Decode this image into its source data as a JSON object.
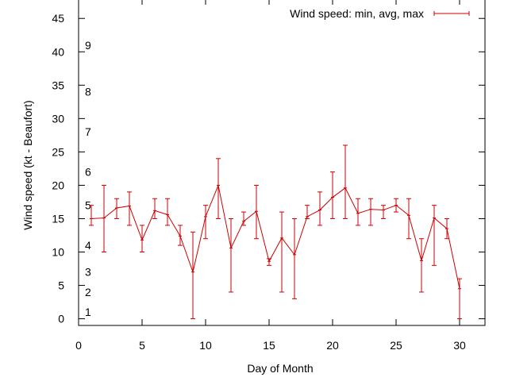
{
  "chart_data": {
    "type": "line",
    "xlabel": "Day of Month",
    "ylabel": "Wind speed (kt - Beaufort)",
    "xlim": [
      0,
      32
    ],
    "ylim": [
      -1,
      48
    ],
    "x_ticks": [
      0,
      5,
      10,
      15,
      20,
      25,
      30
    ],
    "y_ticks": [
      0,
      5,
      10,
      15,
      20,
      25,
      30,
      35,
      40,
      45
    ],
    "grid": false,
    "legend_position": "top-right",
    "series_color": "#cc0000",
    "beaufort_labels": [
      {
        "label": "1",
        "y": 1
      },
      {
        "label": "2",
        "y": 4
      },
      {
        "label": "3",
        "y": 7
      },
      {
        "label": "4",
        "y": 11
      },
      {
        "label": "5",
        "y": 17
      },
      {
        "label": "6",
        "y": 22
      },
      {
        "label": "7",
        "y": 28
      },
      {
        "label": "8",
        "y": 34
      },
      {
        "label": "9",
        "y": 41
      }
    ],
    "series": [
      {
        "name": "Wind speed: min, avg, max",
        "x": [
          1,
          2,
          3,
          4,
          5,
          6,
          7,
          8,
          9,
          10,
          11,
          12,
          13,
          14,
          15,
          16,
          17,
          18,
          19,
          20,
          21,
          22,
          23,
          24,
          25,
          26,
          27,
          28,
          29,
          30
        ],
        "min": [
          14,
          10,
          15,
          14,
          10,
          15,
          14,
          11,
          0,
          12,
          15,
          4,
          14,
          12,
          8,
          4,
          3,
          15,
          14,
          15,
          15,
          14,
          14,
          15,
          16,
          12,
          4,
          8,
          12,
          0
        ],
        "avg": [
          15,
          15.1,
          16.6,
          16.9,
          11.8,
          16.2,
          15.6,
          12.4,
          7,
          15.3,
          20,
          10.6,
          14.6,
          16.1,
          8.6,
          12.1,
          9.6,
          15.3,
          16.3,
          18.2,
          19.6,
          15.8,
          16.4,
          16.3,
          17,
          15.5,
          8.7,
          15.1,
          13.5,
          4.5
        ],
        "max": [
          17,
          20,
          18,
          19,
          14,
          18,
          18,
          14,
          13,
          17,
          24,
          15,
          16,
          20,
          9,
          16,
          15,
          17,
          19,
          22,
          26,
          18,
          18,
          17,
          18,
          18,
          12,
          17,
          15,
          6
        ]
      }
    ]
  }
}
